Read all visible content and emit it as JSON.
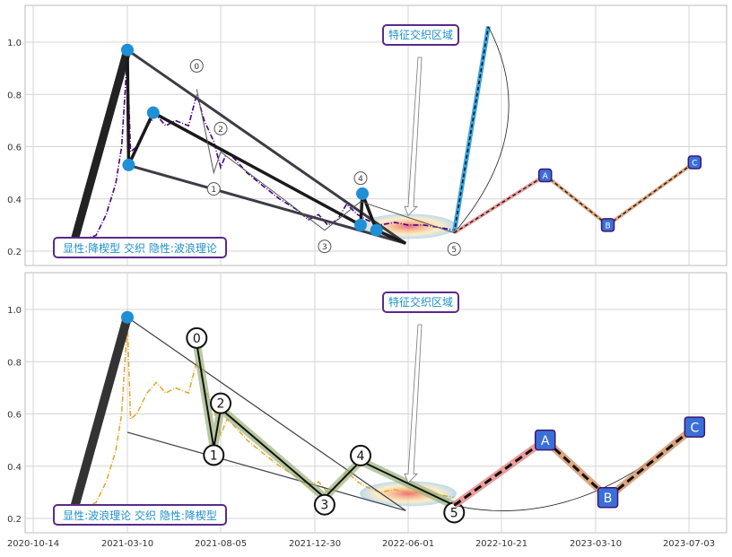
{
  "x_ticks": [
    "2020-10-14",
    "2021-03-10",
    "2021-08-05",
    "2021-12-30",
    "2022-06-01",
    "2022-10-21",
    "2023-03-10",
    "2023-07-03"
  ],
  "y_ticks": [
    "0.2",
    "0.4",
    "0.6",
    "0.8",
    "1.0"
  ],
  "chart_data": [
    {
      "type": "line",
      "panel": "top",
      "annotation_box": "特征交织区域",
      "caption_box": "显性:降楔型 交织 隐性:波浪理论",
      "xlim": [
        "2020-10-14",
        "2023-08-01"
      ],
      "ylim": [
        0.15,
        1.13
      ],
      "grid": true,
      "price_color": "#4b0082",
      "price_points": [
        [
          "2020-12-01",
          0.24
        ],
        [
          "2020-12-25",
          0.24
        ],
        [
          "2021-01-20",
          0.26
        ],
        [
          "2021-02-05",
          0.34
        ],
        [
          "2021-02-20",
          0.46
        ],
        [
          "2021-03-01",
          0.6
        ],
        [
          "2021-03-10",
          0.95
        ],
        [
          "2021-03-15",
          0.58
        ],
        [
          "2021-03-25",
          0.6
        ],
        [
          "2021-04-10",
          0.68
        ],
        [
          "2021-04-25",
          0.72
        ],
        [
          "2021-05-10",
          0.68
        ],
        [
          "2021-05-25",
          0.7
        ],
        [
          "2021-06-15",
          0.68
        ],
        [
          "2021-06-28",
          0.8
        ],
        [
          "2021-07-10",
          0.7
        ],
        [
          "2021-07-25",
          0.62
        ],
        [
          "2021-08-05",
          0.52
        ],
        [
          "2021-08-15",
          0.58
        ],
        [
          "2021-08-28",
          0.55
        ],
        [
          "2021-09-15",
          0.5
        ],
        [
          "2021-10-10",
          0.45
        ],
        [
          "2021-11-05",
          0.4
        ],
        [
          "2021-12-01",
          0.36
        ],
        [
          "2021-12-20",
          0.32
        ],
        [
          "2022-01-05",
          0.34
        ],
        [
          "2022-01-20",
          0.3
        ],
        [
          "2022-02-05",
          0.32
        ],
        [
          "2022-02-20",
          0.38
        ],
        [
          "2022-03-10",
          0.34
        ],
        [
          "2022-03-25",
          0.32
        ],
        [
          "2022-04-15",
          0.3
        ],
        [
          "2022-05-10",
          0.31
        ],
        [
          "2022-06-01",
          0.3
        ],
        [
          "2022-06-25",
          0.3
        ],
        [
          "2022-07-20",
          0.29
        ],
        [
          "2022-08-10",
          0.28
        ]
      ],
      "wedge_lines": [
        [
          [
            "2021-03-10",
            0.97
          ],
          [
            "2022-05-28",
            0.23
          ]
        ],
        [
          [
            "2021-03-10",
            0.53
          ],
          [
            "2022-05-28",
            0.23
          ]
        ]
      ],
      "zigzag": [
        [
          "2020-12-15",
          0.22
        ],
        [
          "2021-03-10",
          0.97
        ],
        [
          "2021-03-12",
          0.53
        ],
        [
          "2021-04-20",
          0.73
        ],
        [
          "2022-03-15",
          0.3
        ],
        [
          "2022-03-18",
          0.42
        ],
        [
          "2022-04-10",
          0.28
        ],
        [
          "2022-05-28",
          0.23
        ]
      ],
      "wave_points": [
        {
          "label": "0",
          "x": "2021-06-28",
          "y": 0.82
        },
        {
          "label": "1",
          "x": "2021-07-25",
          "y": 0.5
        },
        {
          "label": "2",
          "x": "2021-08-05",
          "y": 0.58
        },
        {
          "label": "3",
          "x": "2022-01-15",
          "y": 0.28
        },
        {
          "label": "4",
          "x": "2022-03-15",
          "y": 0.39
        },
        {
          "label": "5",
          "x": "2022-08-10",
          "y": 0.27
        }
      ],
      "projection": [
        {
          "label": "A",
          "x": "2022-12-25",
          "y": 0.49
        },
        {
          "label": "B",
          "x": "2023-03-25",
          "y": 0.3
        },
        {
          "label": "C",
          "x": "2023-07-10",
          "y": 0.54
        }
      ],
      "breakout": [
        [
          "2022-08-10",
          0.27
        ],
        [
          "2022-10-01",
          1.06
        ]
      ]
    },
    {
      "type": "line",
      "panel": "bottom",
      "annotation_box": "特征交织区域",
      "caption_box": "显性:波浪理论 交织 隐性:降楔型",
      "xlim": [
        "2020-10-14",
        "2023-08-01"
      ],
      "ylim": [
        0.15,
        1.13
      ],
      "grid": true,
      "price_color": "#e5a526",
      "wave_points": [
        {
          "label": "0",
          "x": "2021-06-28",
          "y": 0.87
        },
        {
          "label": "1",
          "x": "2021-07-25",
          "y": 0.47
        },
        {
          "label": "2",
          "x": "2021-08-05",
          "y": 0.62
        },
        {
          "label": "3",
          "x": "2022-01-15",
          "y": 0.28
        },
        {
          "label": "4",
          "x": "2022-03-15",
          "y": 0.42
        },
        {
          "label": "5",
          "x": "2022-08-10",
          "y": 0.25
        }
      ],
      "projection": [
        {
          "label": "A",
          "x": "2022-12-25",
          "y": 0.5
        },
        {
          "label": "B",
          "x": "2023-03-25",
          "y": 0.28
        },
        {
          "label": "C",
          "x": "2023-07-10",
          "y": 0.55
        }
      ]
    }
  ]
}
